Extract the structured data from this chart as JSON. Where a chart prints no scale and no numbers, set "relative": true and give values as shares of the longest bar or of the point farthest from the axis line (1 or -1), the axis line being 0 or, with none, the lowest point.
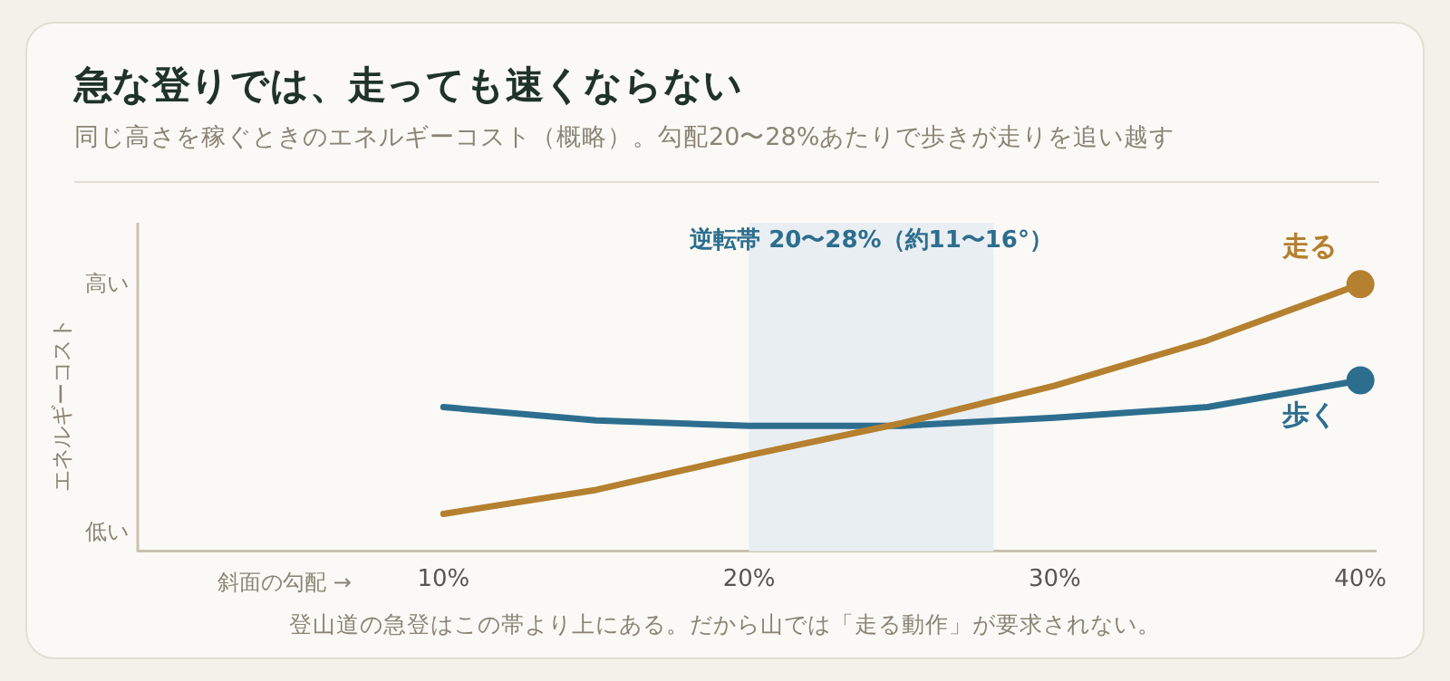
{
  "chart_data": {
    "type": "line",
    "title": "急な登りでは、走っても速くならない",
    "subtitle": "同じ高さを稼ぐときのエネルギーコスト（概略）。勾配20〜28%あたりで歩きが走りを追い越す",
    "xlabel": "斜面の勾配 →",
    "ylabel": "エネルギーコスト",
    "relative": true,
    "x": [
      10,
      15,
      20,
      25,
      30,
      35,
      40
    ],
    "xlim": [
      0,
      40.5
    ],
    "xticks": [
      {
        "value": 10,
        "label": "10%"
      },
      {
        "value": 20,
        "label": "20%"
      },
      {
        "value": 30,
        "label": "30%"
      },
      {
        "value": 40,
        "label": "40%"
      }
    ],
    "ylim": [
      0,
      1.23
    ],
    "series": [
      {
        "name": "走る",
        "color": "#b5802f",
        "values": [
          0.14,
          0.23,
          0.36,
          0.48,
          0.62,
          0.79,
          1
        ]
      },
      {
        "name": "歩く",
        "color": "#2d6e8e",
        "values": [
          0.54,
          0.49,
          0.47,
          0.47,
          0.5,
          0.54,
          0.64
        ]
      }
    ],
    "bands": [
      {
        "axis": "x",
        "from": 20,
        "to": 28,
        "label": "逆転帯 20〜28%（約11〜16°）",
        "color": "#e8eef2"
      }
    ],
    "annotations": [
      "高い",
      "低い",
      "登山道の急登はこの帯より上にある。だから山では「走る動作」が要求されない。"
    ],
    "grid": false,
    "legend": false,
    "line_style": "solid"
  }
}
